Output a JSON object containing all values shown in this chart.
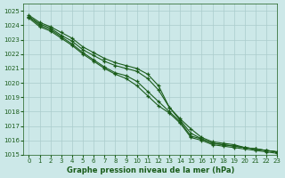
{
  "title": "Graphe pression niveau de la mer (hPa)",
  "bg_color": "#cce8e8",
  "grid_color": "#aacccc",
  "line_color": "#1a5c1a",
  "xlim": [
    -0.5,
    23
  ],
  "ylim": [
    1015,
    1025.5
  ],
  "xticks": [
    0,
    1,
    2,
    3,
    4,
    5,
    6,
    7,
    8,
    9,
    10,
    11,
    12,
    13,
    14,
    15,
    16,
    17,
    18,
    19,
    20,
    21,
    22,
    23
  ],
  "yticks": [
    1015,
    1016,
    1017,
    1018,
    1019,
    1020,
    1021,
    1022,
    1023,
    1024,
    1025
  ],
  "series": [
    [
      1024.6,
      1024.1,
      1023.8,
      1023.3,
      1022.9,
      1022.3,
      1021.9,
      1021.5,
      1021.2,
      1021.0,
      1020.8,
      1020.3,
      1019.5,
      1018.3,
      1017.4,
      1016.5,
      1016.1,
      1015.8,
      1015.7,
      1015.6,
      1015.5,
      1015.4,
      1015.3,
      1015.2
    ],
    [
      1024.6,
      1024.0,
      1023.7,
      1023.2,
      1022.7,
      1022.1,
      1021.6,
      1021.1,
      1020.7,
      1020.5,
      1020.1,
      1019.4,
      1018.7,
      1018.0,
      1017.3,
      1016.3,
      1016.1,
      1015.8,
      1015.7,
      1015.6,
      1015.5,
      1015.4,
      1015.3,
      1015.2
    ],
    [
      1024.7,
      1024.2,
      1023.9,
      1023.5,
      1023.1,
      1022.5,
      1022.1,
      1021.7,
      1021.4,
      1021.2,
      1021.0,
      1020.6,
      1019.8,
      1018.3,
      1017.5,
      1016.8,
      1016.2,
      1015.9,
      1015.8,
      1015.7,
      1015.5,
      1015.4,
      1015.3,
      1015.2
    ],
    [
      1024.5,
      1023.9,
      1023.6,
      1023.1,
      1022.6,
      1022.0,
      1021.5,
      1021.0,
      1020.6,
      1020.3,
      1019.8,
      1019.1,
      1018.4,
      1017.9,
      1017.2,
      1016.2,
      1016.0,
      1015.7,
      1015.6,
      1015.5,
      1015.4,
      1015.3,
      1015.2,
      1015.1
    ]
  ]
}
